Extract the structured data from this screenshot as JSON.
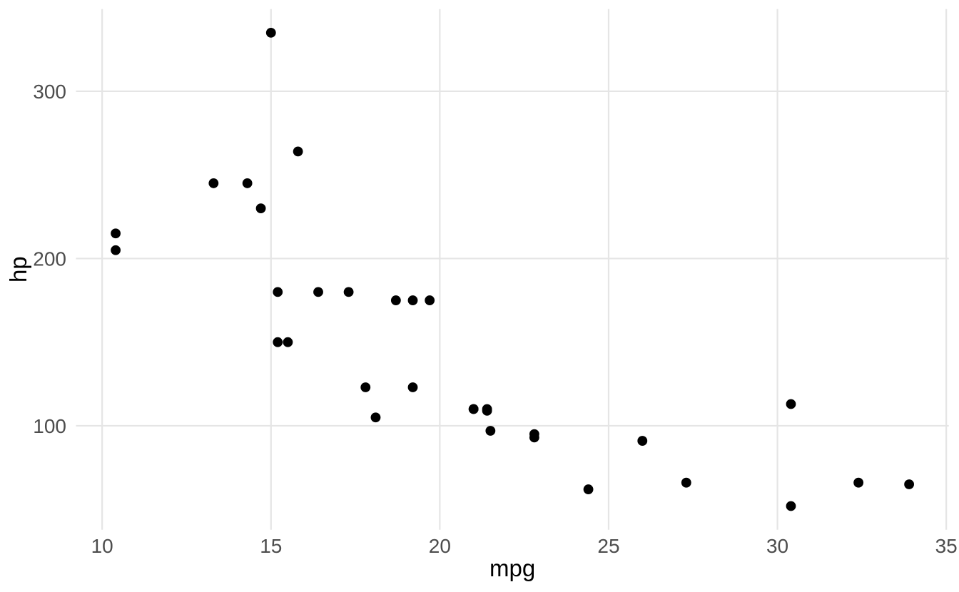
{
  "chart_data": {
    "type": "scatter",
    "title": "",
    "xlabel": "mpg",
    "ylabel": "hp",
    "x_ticks": [
      10,
      15,
      20,
      25,
      30,
      35
    ],
    "y_ticks": [
      100,
      200,
      300
    ],
    "xlim": [
      9.225,
      35.075
    ],
    "ylim": [
      37.85,
      349.15
    ],
    "grid": "major-only",
    "legend": "none",
    "points": [
      [
        21.0,
        110
      ],
      [
        21.0,
        110
      ],
      [
        22.8,
        93
      ],
      [
        21.4,
        110
      ],
      [
        18.7,
        175
      ],
      [
        18.1,
        105
      ],
      [
        14.3,
        245
      ],
      [
        24.4,
        62
      ],
      [
        22.8,
        95
      ],
      [
        19.2,
        123
      ],
      [
        17.8,
        123
      ],
      [
        16.4,
        180
      ],
      [
        17.3,
        180
      ],
      [
        15.2,
        180
      ],
      [
        10.4,
        205
      ],
      [
        10.4,
        215
      ],
      [
        14.7,
        230
      ],
      [
        32.4,
        66
      ],
      [
        30.4,
        52
      ],
      [
        33.9,
        65
      ],
      [
        21.5,
        97
      ],
      [
        15.5,
        150
      ],
      [
        15.2,
        150
      ],
      [
        13.3,
        245
      ],
      [
        19.2,
        175
      ],
      [
        27.3,
        66
      ],
      [
        26.0,
        91
      ],
      [
        30.4,
        113
      ],
      [
        15.8,
        264
      ],
      [
        19.7,
        175
      ],
      [
        15.0,
        335
      ],
      [
        21.4,
        109
      ]
    ]
  },
  "style": {
    "background_color": "#FFFFFF",
    "grid_color": "#E5E5E5",
    "point_color": "#000000",
    "tick_label_color": "#4D4D4D",
    "axis_title_color": "#000000"
  }
}
